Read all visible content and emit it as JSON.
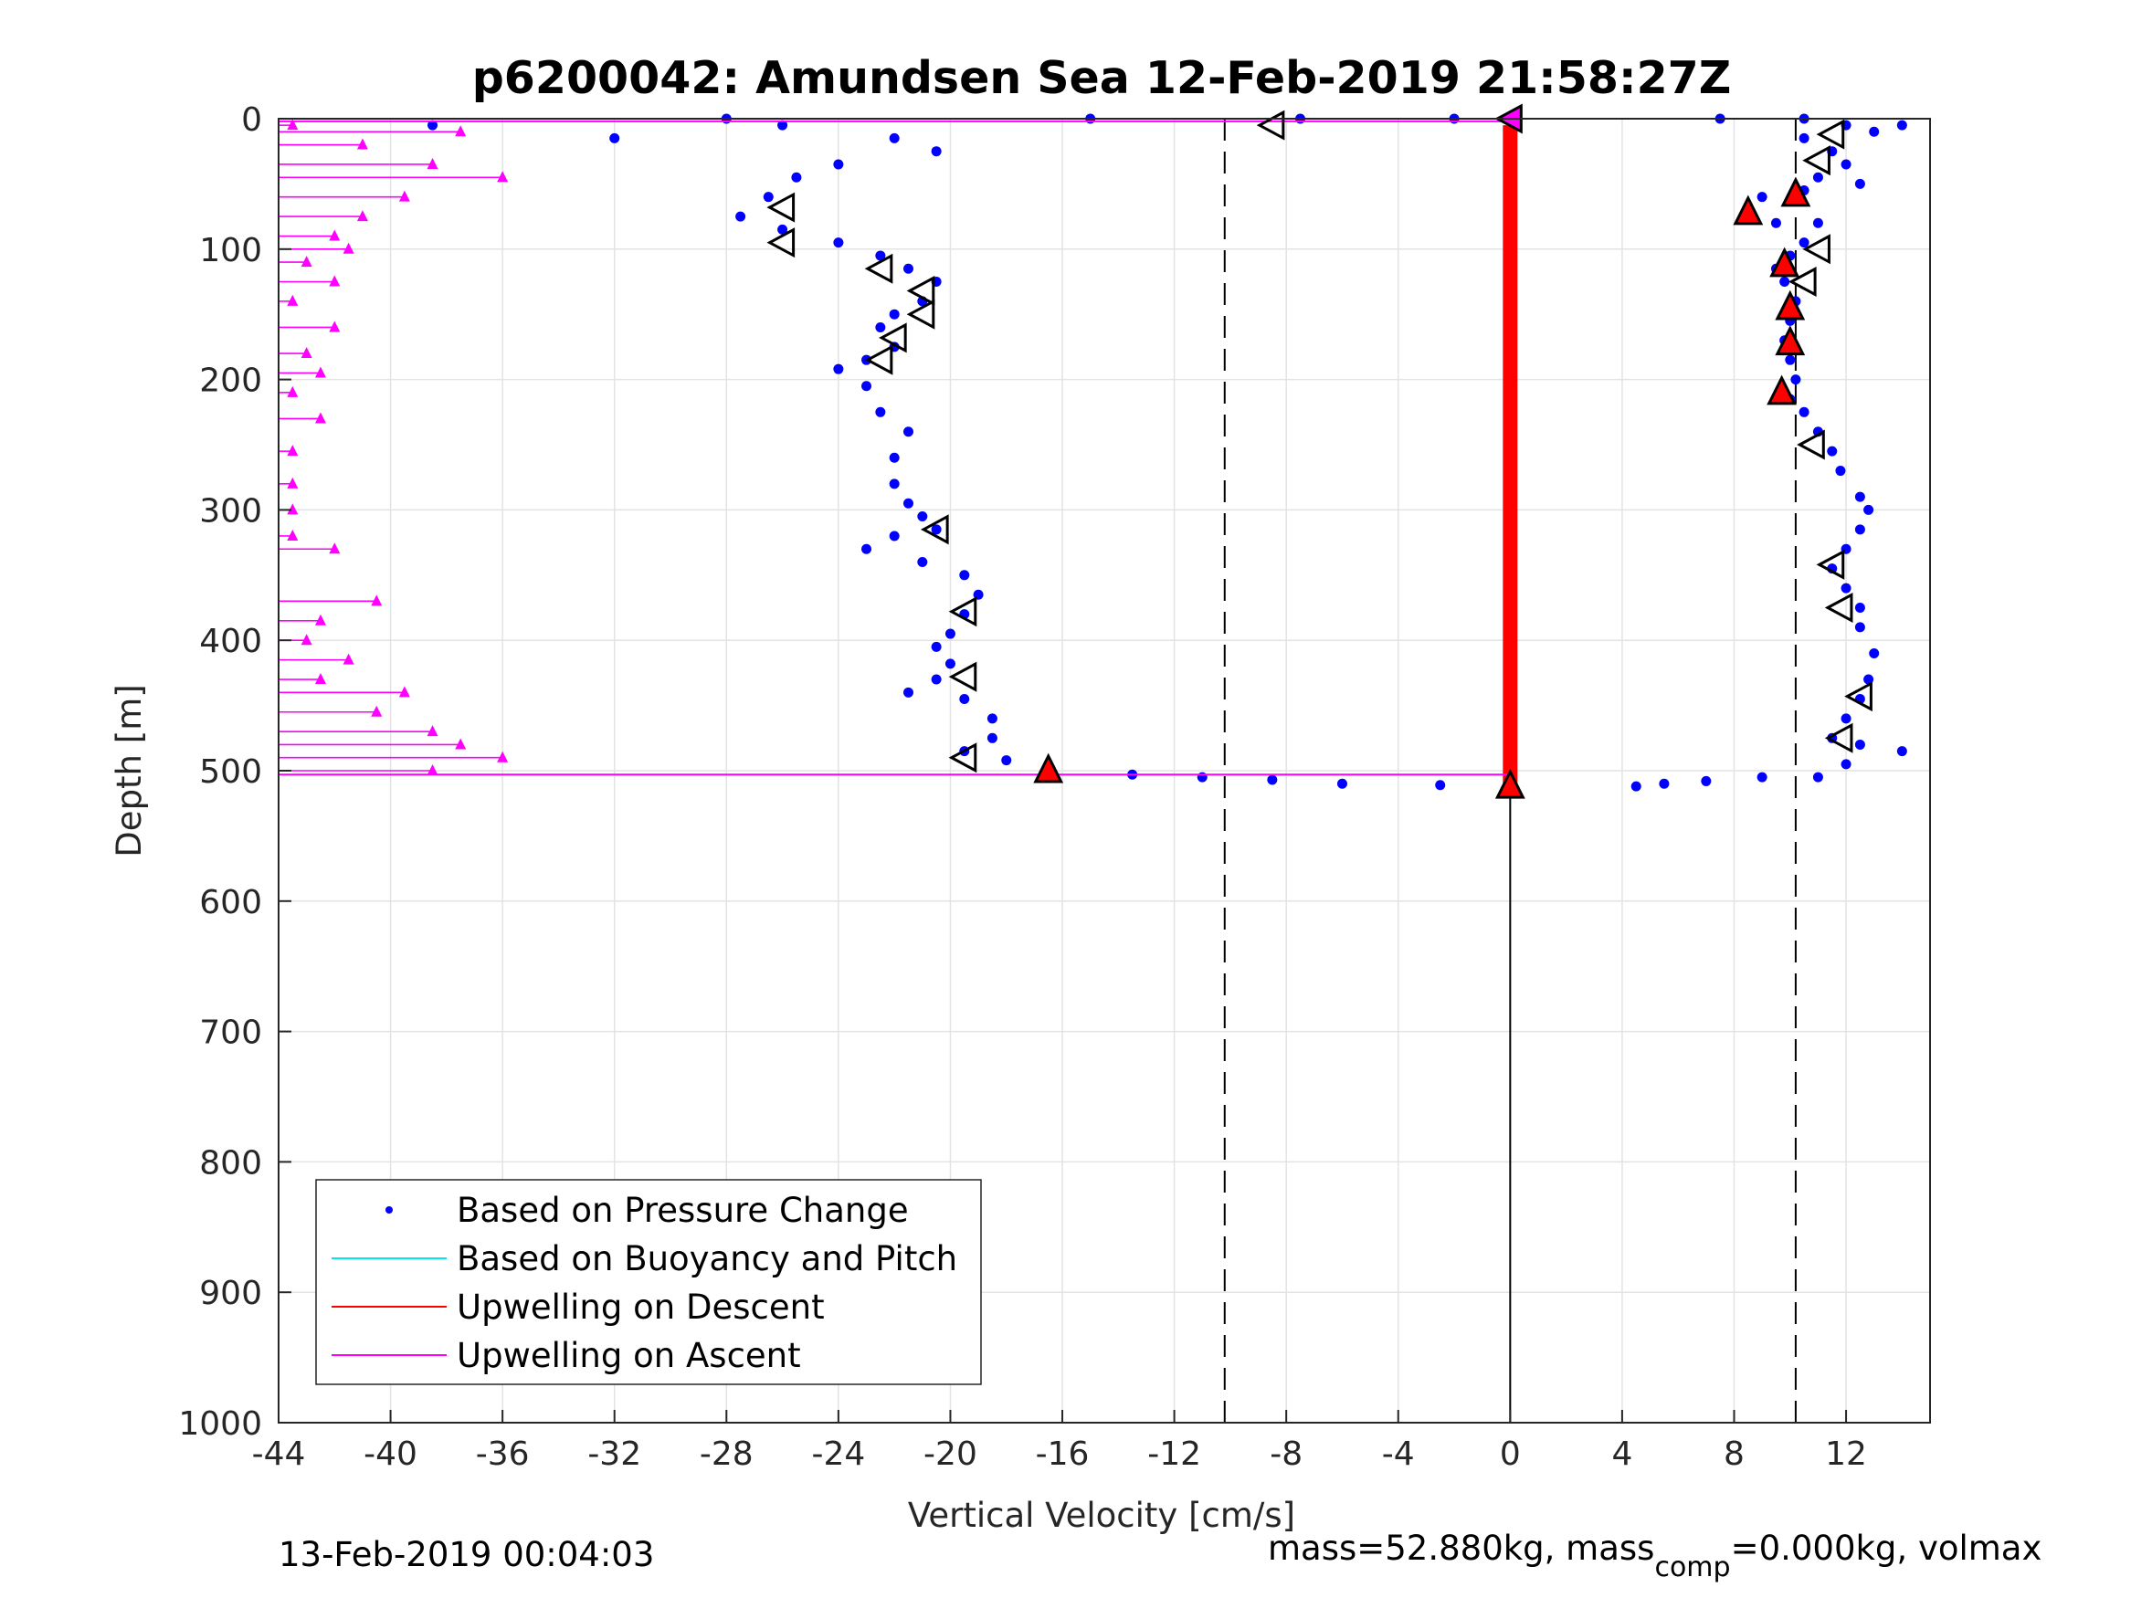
{
  "chart_data": {
    "type": "scatter",
    "title": "p6200042: Amundsen Sea 12-Feb-2019 21:58:27Z",
    "xlabel": "Vertical Velocity [cm/s]",
    "ylabel": "Depth [m]",
    "xlim": [
      -44,
      15
    ],
    "ylim": [
      0,
      1000
    ],
    "y_reversed": true,
    "grid": true,
    "xticks": [
      "-44",
      "-40",
      "-36",
      "-32",
      "-28",
      "-24",
      "-20",
      "-16",
      "-12",
      "-8",
      "-4",
      "0",
      "4",
      "8",
      "12"
    ],
    "xtick_values": [
      -44,
      -40,
      -36,
      -32,
      -28,
      -24,
      -20,
      -16,
      -12,
      -8,
      -4,
      0,
      4,
      8,
      12
    ],
    "yticks": [
      "0",
      "100",
      "200",
      "300",
      "400",
      "500",
      "600",
      "700",
      "800",
      "900",
      "1000"
    ],
    "ytick_values": [
      0,
      100,
      200,
      300,
      400,
      500,
      600,
      700,
      800,
      900,
      1000
    ],
    "legend_position": "bottom-left",
    "legend": [
      {
        "label": "Based on Pressure Change",
        "color": "#0000ff",
        "marker": "dot"
      },
      {
        "label": "Based on Buoyancy and Pitch",
        "color": "#00e5ee",
        "marker": "line"
      },
      {
        "label": "Upwelling on Descent",
        "color": "#ff0000",
        "marker": "line"
      },
      {
        "label": "Upwelling on Ascent",
        "color": "#ff00ff",
        "marker": "line"
      }
    ],
    "reference_lines": {
      "dashed_x": [
        -10.2,
        10.2
      ],
      "solid_x": 0
    },
    "series": [
      {
        "name": "Based on Pressure Change (ascent)",
        "color": "#0000ff",
        "points": [
          [
            -26.5,
            60
          ],
          [
            -27.5,
            75
          ],
          [
            -26.0,
            85
          ],
          [
            -24.0,
            95
          ],
          [
            -22.5,
            105
          ],
          [
            -21.5,
            115
          ],
          [
            -20.5,
            125
          ],
          [
            -21.0,
            140
          ],
          [
            -22.0,
            150
          ],
          [
            -22.5,
            160
          ],
          [
            -22.0,
            175
          ],
          [
            -23.0,
            185
          ],
          [
            -24.0,
            192
          ],
          [
            -23.0,
            205
          ],
          [
            -22.5,
            225
          ],
          [
            -21.5,
            240
          ],
          [
            -22.0,
            260
          ],
          [
            -22.0,
            280
          ],
          [
            -21.5,
            295
          ],
          [
            -21.0,
            305
          ],
          [
            -20.5,
            315
          ],
          [
            -22.0,
            320
          ],
          [
            -23.0,
            330
          ],
          [
            -21.0,
            340
          ],
          [
            -19.5,
            350
          ],
          [
            -19.0,
            365
          ],
          [
            -19.5,
            380
          ],
          [
            -20.0,
            395
          ],
          [
            -20.5,
            405
          ],
          [
            -20.0,
            418
          ],
          [
            -20.5,
            430
          ],
          [
            -21.5,
            440
          ],
          [
            -19.5,
            445
          ],
          [
            -18.5,
            460
          ],
          [
            -18.5,
            475
          ],
          [
            -19.5,
            485
          ],
          [
            -18.0,
            492
          ],
          [
            -16.5,
            500
          ],
          [
            -13.5,
            503
          ],
          [
            -11.0,
            505
          ],
          [
            -8.5,
            507
          ],
          [
            -6.0,
            510
          ],
          [
            -2.5,
            511
          ],
          [
            -38.5,
            5
          ],
          [
            -32.0,
            15
          ],
          [
            -28.0,
            0
          ],
          [
            -26.0,
            5
          ],
          [
            -22.0,
            15
          ],
          [
            -20.5,
            25
          ],
          [
            -24.0,
            35
          ],
          [
            -25.5,
            45
          ],
          [
            -15.0,
            0
          ],
          [
            -7.5,
            0
          ],
          [
            -2.0,
            0
          ]
        ]
      },
      {
        "name": "Based on Pressure Change (descent)",
        "color": "#0000ff",
        "points": [
          [
            7.5,
            0
          ],
          [
            10.5,
            0
          ],
          [
            12.0,
            5
          ],
          [
            14.0,
            5
          ],
          [
            13.0,
            10
          ],
          [
            10.5,
            15
          ],
          [
            11.5,
            25
          ],
          [
            12.0,
            35
          ],
          [
            11.0,
            45
          ],
          [
            12.5,
            50
          ],
          [
            10.5,
            55
          ],
          [
            9.0,
            60
          ],
          [
            8.5,
            70
          ],
          [
            9.5,
            80
          ],
          [
            11.0,
            80
          ],
          [
            10.5,
            95
          ],
          [
            10.0,
            105
          ],
          [
            9.5,
            115
          ],
          [
            9.8,
            125
          ],
          [
            10.2,
            140
          ],
          [
            10.0,
            155
          ],
          [
            9.8,
            170
          ],
          [
            10.0,
            185
          ],
          [
            10.2,
            200
          ],
          [
            10.0,
            215
          ],
          [
            10.5,
            225
          ],
          [
            11.0,
            240
          ],
          [
            11.5,
            255
          ],
          [
            11.8,
            270
          ],
          [
            12.5,
            290
          ],
          [
            12.8,
            300
          ],
          [
            12.5,
            315
          ],
          [
            12.0,
            330
          ],
          [
            11.5,
            345
          ],
          [
            12.0,
            360
          ],
          [
            12.5,
            375
          ],
          [
            12.5,
            390
          ],
          [
            13.0,
            410
          ],
          [
            12.8,
            430
          ],
          [
            12.5,
            445
          ],
          [
            12.0,
            460
          ],
          [
            11.5,
            475
          ],
          [
            12.5,
            480
          ],
          [
            14.0,
            485
          ],
          [
            12.0,
            495
          ],
          [
            11.0,
            505
          ],
          [
            9.0,
            505
          ],
          [
            7.0,
            508
          ],
          [
            5.5,
            510
          ],
          [
            4.5,
            512
          ]
        ]
      },
      {
        "name": "Upwelling on Ascent",
        "color": "#ff00ff",
        "points": [
          [
            -43.5,
            5
          ],
          [
            -37.5,
            10
          ],
          [
            -41.0,
            20
          ],
          [
            -38.5,
            35
          ],
          [
            -36.0,
            45
          ],
          [
            -39.5,
            60
          ],
          [
            -41.0,
            75
          ],
          [
            -42.0,
            90
          ],
          [
            -41.5,
            100
          ],
          [
            -43.0,
            110
          ],
          [
            -42.0,
            125
          ],
          [
            -43.5,
            140
          ],
          [
            -42.0,
            160
          ],
          [
            -43.0,
            180
          ],
          [
            -42.5,
            195
          ],
          [
            -43.5,
            210
          ],
          [
            -42.5,
            230
          ],
          [
            -43.5,
            255
          ],
          [
            -43.5,
            280
          ],
          [
            -43.5,
            300
          ],
          [
            -43.5,
            320
          ],
          [
            -42.0,
            330
          ],
          [
            -40.5,
            370
          ],
          [
            -42.5,
            385
          ],
          [
            -43.0,
            400
          ],
          [
            -41.5,
            415
          ],
          [
            -42.5,
            430
          ],
          [
            -39.5,
            440
          ],
          [
            -40.5,
            455
          ],
          [
            -38.5,
            470
          ],
          [
            -37.5,
            480
          ],
          [
            -36.0,
            490
          ],
          [
            -38.5,
            500
          ]
        ]
      },
      {
        "name": "Upwelling on Descent",
        "color": "#ff0000",
        "points": [
          [
            0,
            5
          ],
          [
            0,
            100
          ],
          [
            0,
            200
          ],
          [
            0,
            300
          ],
          [
            0,
            400
          ],
          [
            0,
            500
          ],
          [
            0,
            510
          ]
        ]
      },
      {
        "name": "Open triangle markers",
        "color": "#000000",
        "points": [
          [
            -8.5,
            5
          ],
          [
            -26.0,
            68
          ],
          [
            -26.0,
            95
          ],
          [
            -22.5,
            115
          ],
          [
            -21.0,
            132
          ],
          [
            -21.0,
            150
          ],
          [
            -22.0,
            168
          ],
          [
            -22.5,
            185
          ],
          [
            -20.5,
            315
          ],
          [
            -19.5,
            378
          ],
          [
            -19.5,
            428
          ],
          [
            -19.5,
            490
          ],
          [
            11.5,
            12
          ],
          [
            11.0,
            32
          ],
          [
            11.0,
            100
          ],
          [
            10.5,
            125
          ],
          [
            10.8,
            250
          ],
          [
            11.5,
            342
          ],
          [
            11.8,
            375
          ],
          [
            12.5,
            443
          ],
          [
            11.8,
            475
          ]
        ]
      },
      {
        "name": "Filled red triangle markers",
        "color": "#ff0000",
        "points": [
          [
            -16.5,
            500
          ],
          [
            0,
            0
          ],
          [
            0,
            512
          ],
          [
            8.5,
            72
          ],
          [
            9.8,
            112
          ],
          [
            10.0,
            145
          ],
          [
            10.0,
            172
          ],
          [
            9.7,
            210
          ],
          [
            10.2,
            58
          ]
        ]
      }
    ]
  },
  "footer": {
    "timestamp": "13-Feb-2019 00:04:03",
    "mass_prefix": "mass=52.880kg, mass",
    "mass_sub": "comp",
    "mass_suffix": "=0.000kg, volmax"
  }
}
